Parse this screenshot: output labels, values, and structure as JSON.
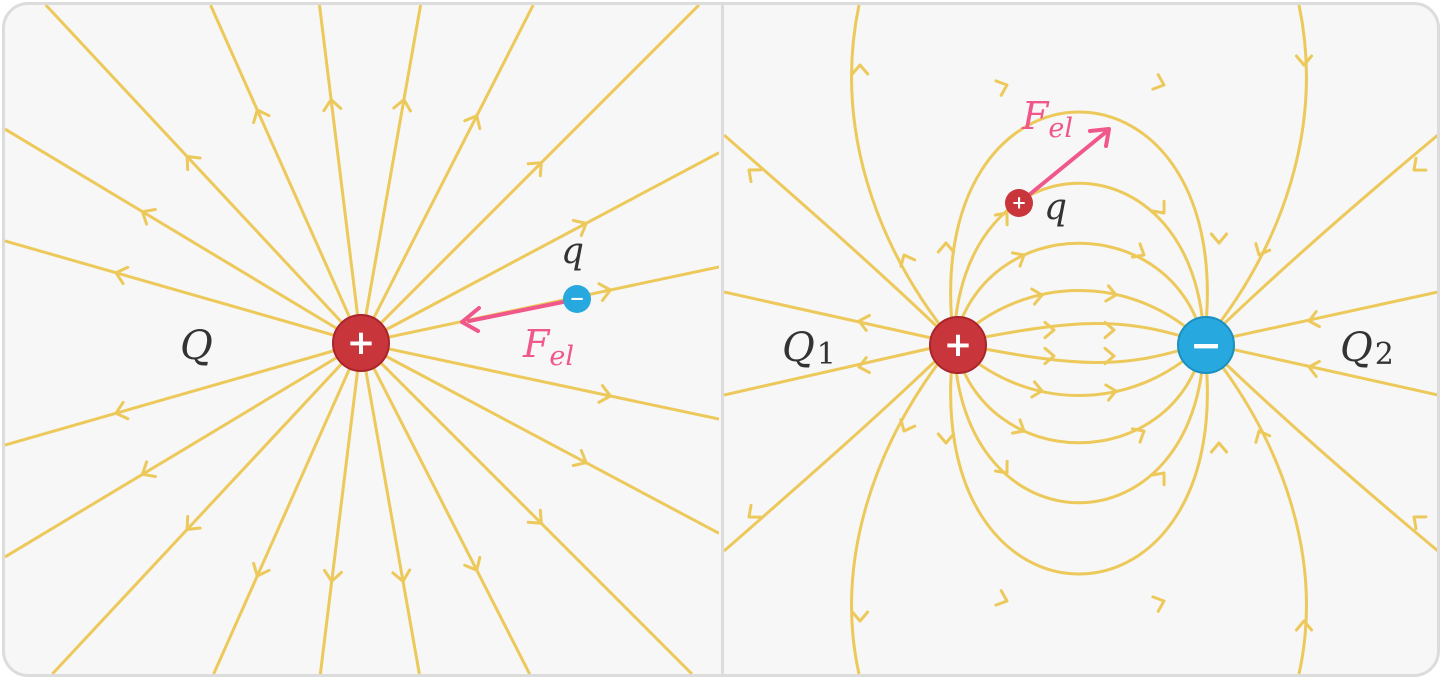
{
  "left": {
    "source_charge": {
      "label": "Q",
      "sign": "+"
    },
    "test_charge": {
      "label": "q",
      "sign": "−"
    },
    "force": {
      "symbol": "F",
      "subscript": "el"
    }
  },
  "right": {
    "charge_1": {
      "label": "Q",
      "index": "1",
      "sign": "+"
    },
    "charge_2": {
      "label": "Q",
      "index": "2",
      "sign": "−"
    },
    "test_charge": {
      "label": "q",
      "sign": "+"
    },
    "force": {
      "symbol": "F",
      "subscript": "el"
    }
  },
  "colors": {
    "field_line": "#ecc95a",
    "positive": "#c8353b",
    "negative": "#27a8de",
    "force": "#f0578a",
    "text": "#333333",
    "background": "#f7f7f7",
    "border": "#dcdcdc"
  }
}
